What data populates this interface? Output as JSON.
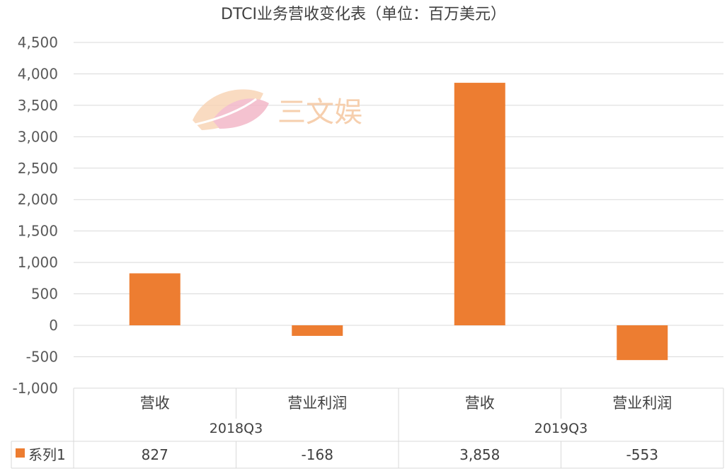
{
  "chart_data": {
    "type": "bar",
    "title": "DTCI业务营收变化表（单位：百万美元）",
    "xlabel": "",
    "ylabel": "",
    "ylim": [
      -1000,
      4500
    ],
    "yticks": [
      "4,500",
      "4,000",
      "3,500",
      "3,000",
      "2,500",
      "2,000",
      "1,500",
      "1,000",
      "500",
      "0",
      "-500",
      "-1,000"
    ],
    "grid": true,
    "legend": "data-table-left",
    "categories": [
      "营收",
      "营业利润",
      "营收",
      "营业利润"
    ],
    "groups": [
      "2018Q3",
      "2019Q3"
    ],
    "series": [
      {
        "name": "系列1",
        "color": "#ed7d31",
        "values": [
          827,
          -168,
          3858,
          -553
        ],
        "value_labels": [
          "827",
          "-168",
          "3,858",
          "-553"
        ]
      }
    ]
  },
  "watermark": {
    "text": "三文娱",
    "icon": "leaf-logo-icon"
  },
  "colors": {
    "bar": "#ed7d31",
    "grid": "#d9d9d9",
    "text": "#404040"
  }
}
